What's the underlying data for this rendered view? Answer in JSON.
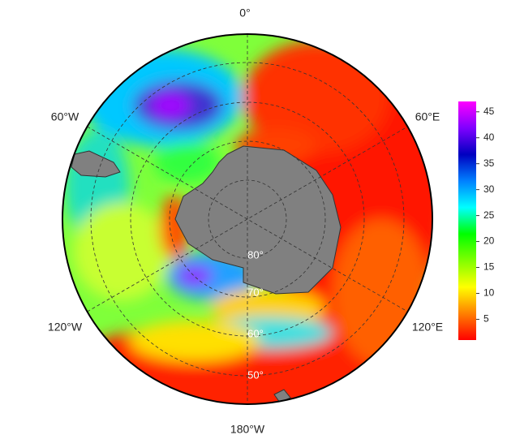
{
  "map": {
    "meridian_labels": [
      "0°",
      "60°W",
      "60°E",
      "120°W",
      "120°E",
      "180°W"
    ],
    "latitude_labels": [
      "80°",
      "70°",
      "60°",
      "50°"
    ],
    "colorbar": {
      "range": [
        1,
        47
      ],
      "ticks": [
        5,
        10,
        15,
        20,
        25,
        30,
        35,
        40,
        45
      ],
      "colors": [
        "#ff0000",
        "#ff8000",
        "#ffff00",
        "#80ff00",
        "#00ff00",
        "#00ffff",
        "#0080ff",
        "#0000c0",
        "#8000ff",
        "#ff00ff"
      ]
    }
  }
}
